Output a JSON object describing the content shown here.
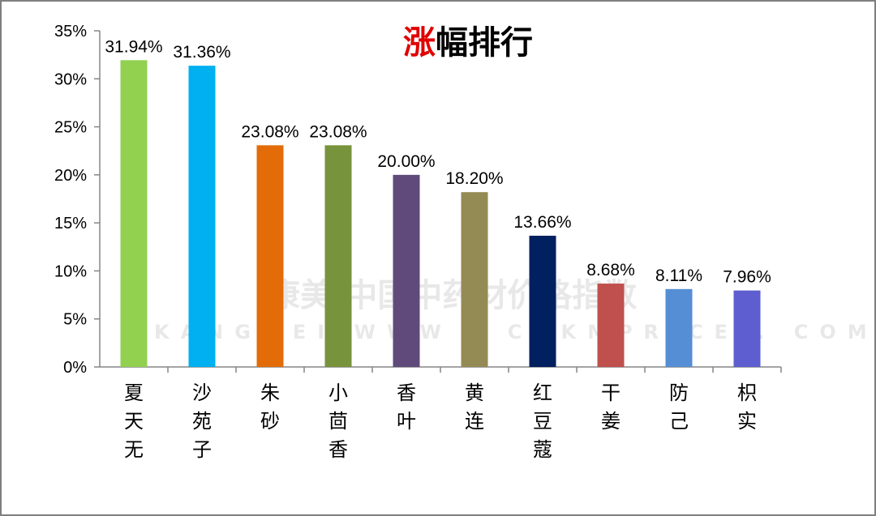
{
  "chart_data": {
    "type": "bar",
    "title_parts": [
      {
        "text": "涨",
        "color": "#e00000"
      },
      {
        "text": "幅排行",
        "color": "#000000"
      }
    ],
    "categories": [
      "夏天无",
      "沙苑子",
      "朱砂",
      "小茴香",
      "香叶",
      "黄连",
      "红豆蔻",
      "干姜",
      "防己",
      "枳实"
    ],
    "values": [
      31.94,
      31.36,
      23.08,
      23.08,
      20.0,
      18.2,
      13.66,
      8.68,
      8.11,
      7.96
    ],
    "data_labels": [
      "31.94%",
      "31.36%",
      "23.08%",
      "23.08%",
      "20.00%",
      "18.20%",
      "13.66%",
      "8.68%",
      "8.11%",
      "7.96%"
    ],
    "colors": [
      "#92d050",
      "#00b0f0",
      "#e36c09",
      "#77933c",
      "#604a7b",
      "#948a54",
      "#002060",
      "#c0504d",
      "#558ed5",
      "#5e5ed0"
    ],
    "ylim": [
      0,
      35
    ],
    "yticks": [
      0,
      5,
      10,
      15,
      20,
      25,
      30,
      35
    ],
    "ytick_labels": [
      "0%",
      "5%",
      "10%",
      "15%",
      "20%",
      "25%",
      "30%",
      "35%"
    ],
    "xlabel": "",
    "ylabel": "",
    "grid": false,
    "legend": "none"
  },
  "watermark": {
    "line1": "康美·中国中药材价格指数",
    "line2": "KANGMEI WWW . CNKMPRICE . COM"
  }
}
